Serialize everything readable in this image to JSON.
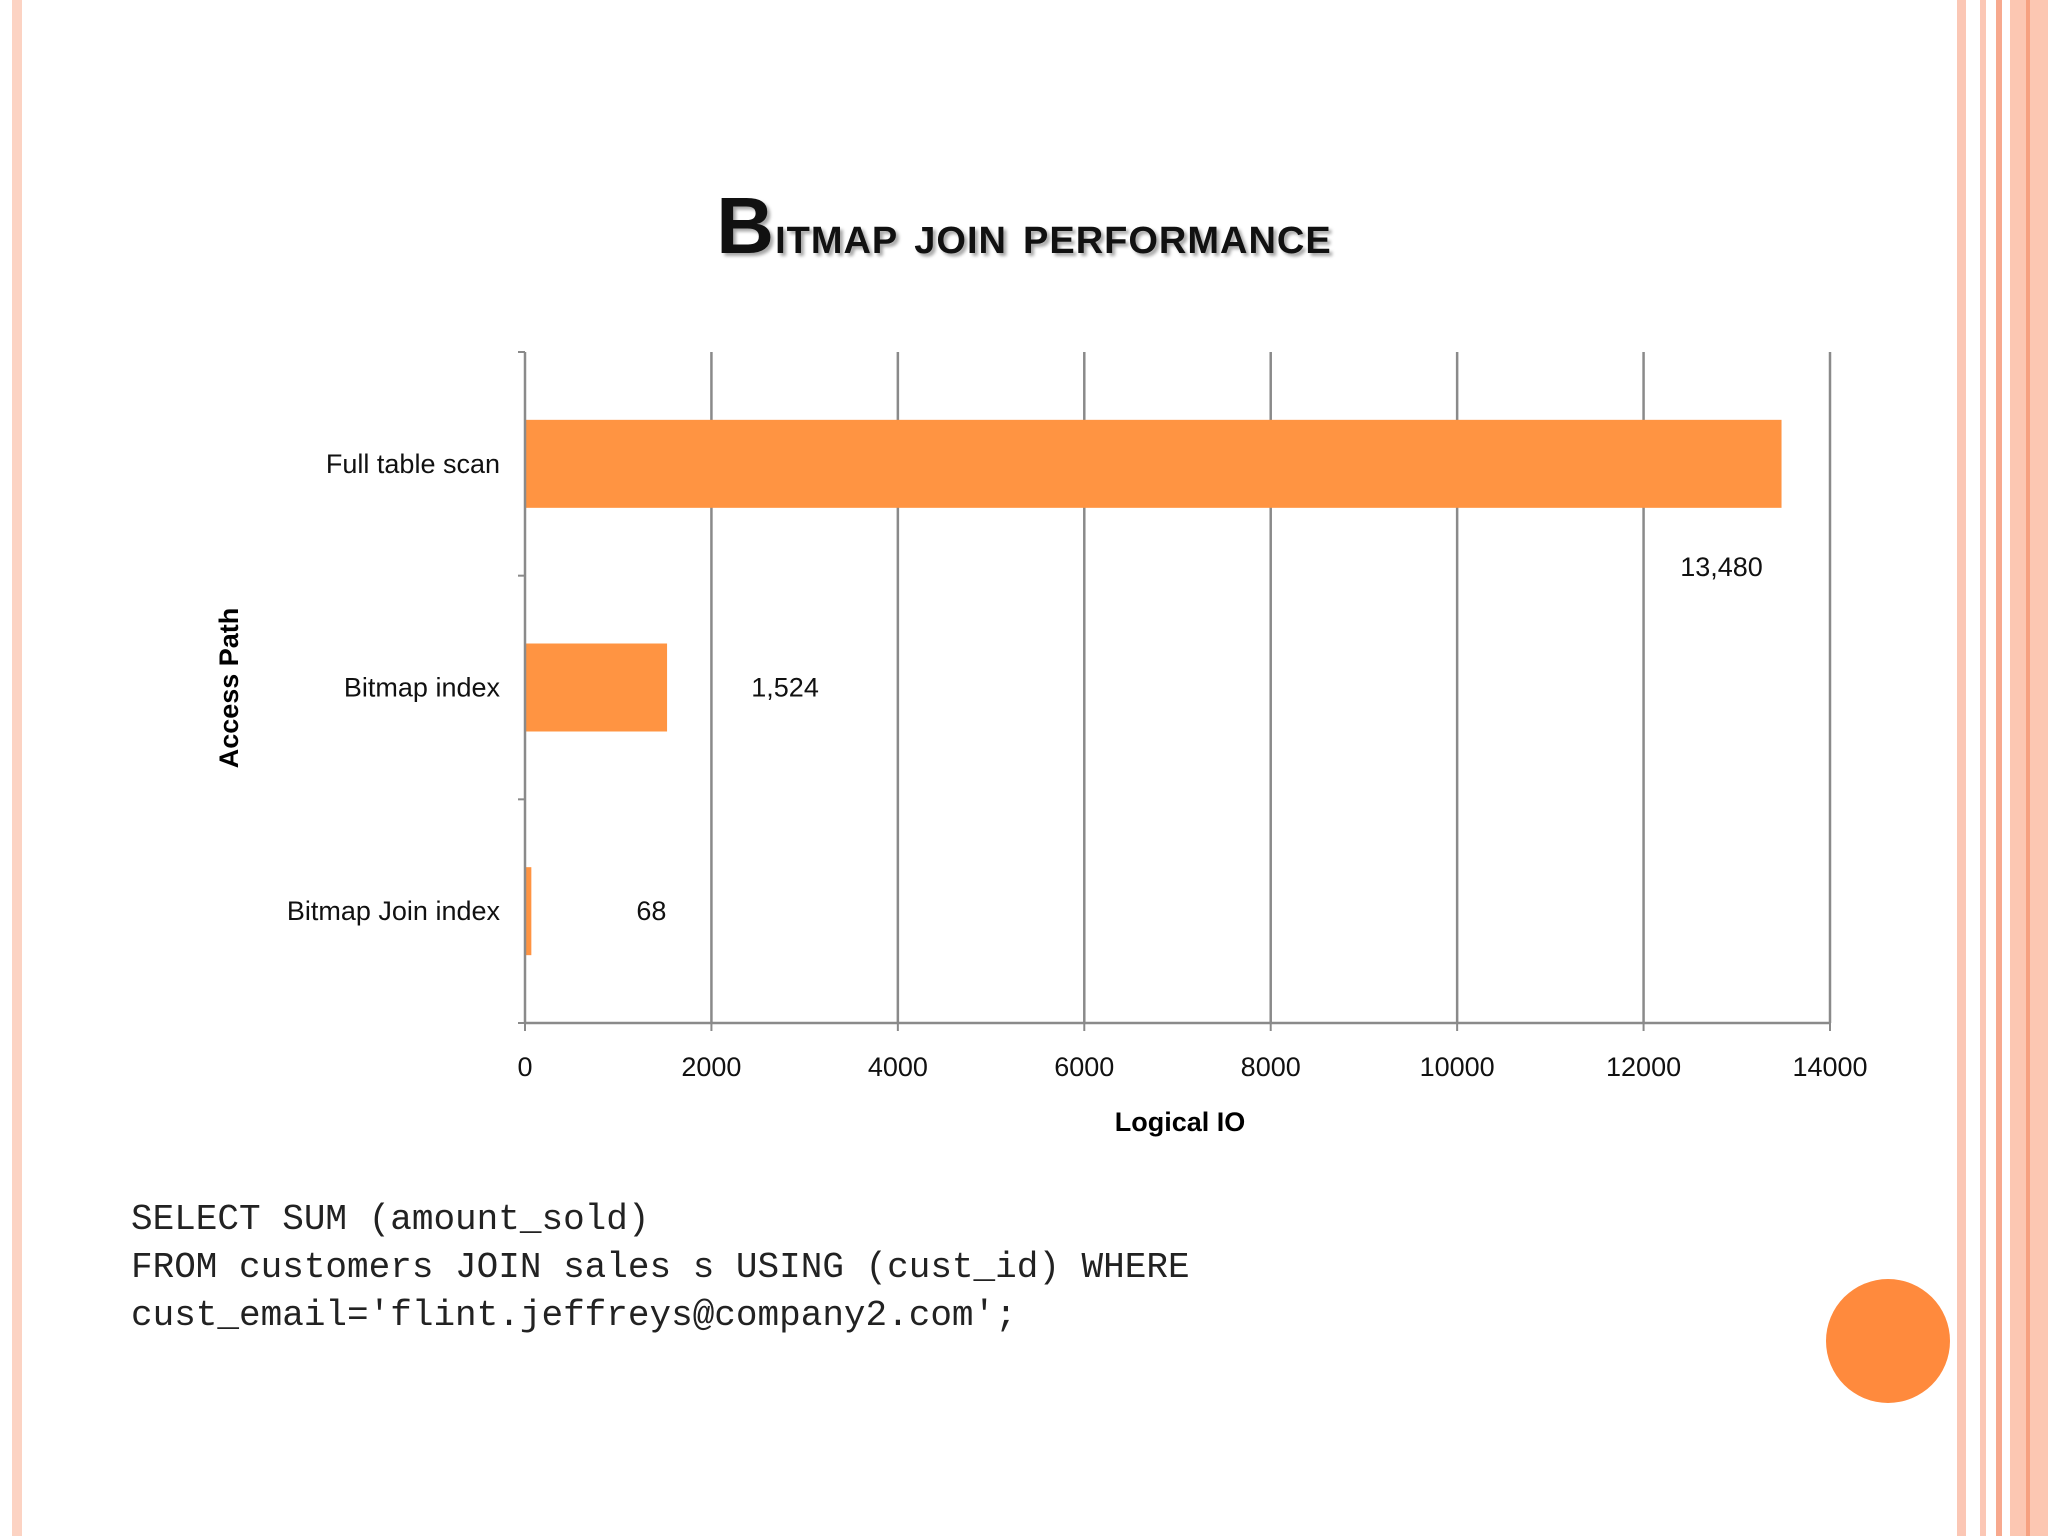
{
  "slide": {
    "title": "Bitmap join performance",
    "sql_lines": [
      "SELECT SUM (amount_sold)",
      "FROM customers JOIN sales s USING (cust_id) WHERE",
      "cust_email='flint.jeffreys@company2.com';"
    ]
  },
  "colors": {
    "bar": "#FF9442",
    "accent_circle": "#FF8A3D",
    "frame_light": "#FBC7B5",
    "frame_mid": "#F7A98E",
    "grid": "#8A8A8A"
  },
  "chart_data": {
    "type": "bar",
    "orientation": "horizontal",
    "categories": [
      "Full table scan",
      "Bitmap index",
      "Bitmap Join index"
    ],
    "values": [
      13480,
      1524,
      68
    ],
    "data_labels": [
      "13,480",
      "1,524",
      "68"
    ],
    "xlabel": "Logical IO",
    "ylabel": "Access Path",
    "xlim": [
      0,
      14000
    ],
    "xticks": [
      0,
      2000,
      4000,
      6000,
      8000,
      10000,
      12000,
      14000
    ],
    "grid": "vertical"
  }
}
